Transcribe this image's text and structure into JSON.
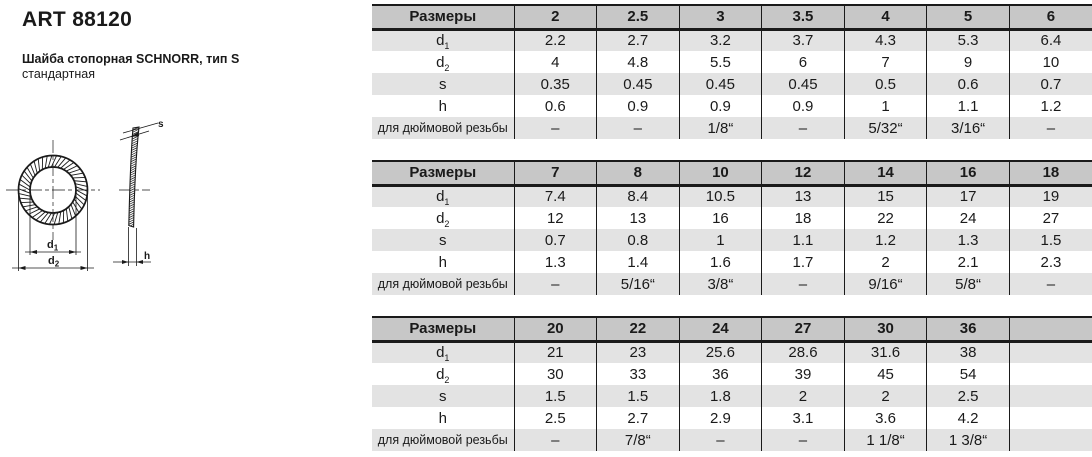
{
  "page": {
    "title": "ART 88120",
    "subtitle_line1": "Шайба стопорная SCHNORR, тип S",
    "subtitle_line2": "стандартная"
  },
  "colors": {
    "header_bg": "#c7c7c7",
    "row_alt_bg": "#e3e3e3",
    "border_color": "#1a1a1a",
    "text_color": "#1a1a1a"
  },
  "drawing": {
    "d1_main": "d",
    "d1_sub": "1",
    "d2_main": "d",
    "d2_sub": "2",
    "s_label": "s",
    "h_label": "h"
  },
  "tables": [
    {
      "header_label": "Размеры",
      "sizes": [
        "2",
        "2.5",
        "3",
        "3.5",
        "4",
        "5",
        "6"
      ],
      "rows": [
        {
          "label": "d",
          "sub": "1",
          "values": [
            "2.2",
            "2.7",
            "3.2",
            "3.7",
            "4.3",
            "5.3",
            "6.4"
          ]
        },
        {
          "label": "d",
          "sub": "2",
          "values": [
            "4",
            "4.8",
            "5.5",
            "6",
            "7",
            "9",
            "10"
          ]
        },
        {
          "label": "s",
          "sub": "",
          "values": [
            "0.35",
            "0.45",
            "0.45",
            "0.45",
            "0.5",
            "0.6",
            "0.7"
          ]
        },
        {
          "label": "h",
          "sub": "",
          "values": [
            "0.6",
            "0.9",
            "0.9",
            "0.9",
            "1",
            "1.1",
            "1.2"
          ]
        },
        {
          "label": "для дюймовой резьбы",
          "sub": "",
          "values": [
            "–",
            "–",
            "1/8“",
            "–",
            "5/32“",
            "3/16“",
            "–"
          ]
        }
      ]
    },
    {
      "header_label": "Размеры",
      "sizes": [
        "7",
        "8",
        "10",
        "12",
        "14",
        "16",
        "18"
      ],
      "rows": [
        {
          "label": "d",
          "sub": "1",
          "values": [
            "7.4",
            "8.4",
            "10.5",
            "13",
            "15",
            "17",
            "19"
          ]
        },
        {
          "label": "d",
          "sub": "2",
          "values": [
            "12",
            "13",
            "16",
            "18",
            "22",
            "24",
            "27"
          ]
        },
        {
          "label": "s",
          "sub": "",
          "values": [
            "0.7",
            "0.8",
            "1",
            "1.1",
            "1.2",
            "1.3",
            "1.5"
          ]
        },
        {
          "label": "h",
          "sub": "",
          "values": [
            "1.3",
            "1.4",
            "1.6",
            "1.7",
            "2",
            "2.1",
            "2.3"
          ]
        },
        {
          "label": "для дюймовой резьбы",
          "sub": "",
          "values": [
            "–",
            "5/16“",
            "3/8“",
            "–",
            "9/16“",
            "5/8“",
            "–"
          ]
        }
      ]
    },
    {
      "header_label": "Размеры",
      "sizes": [
        "20",
        "22",
        "24",
        "27",
        "30",
        "36",
        ""
      ],
      "rows": [
        {
          "label": "d",
          "sub": "1",
          "values": [
            "21",
            "23",
            "25.6",
            "28.6",
            "31.6",
            "38",
            ""
          ]
        },
        {
          "label": "d",
          "sub": "2",
          "values": [
            "30",
            "33",
            "36",
            "39",
            "45",
            "54",
            ""
          ]
        },
        {
          "label": "s",
          "sub": "",
          "values": [
            "1.5",
            "1.5",
            "1.8",
            "2",
            "2",
            "2.5",
            ""
          ]
        },
        {
          "label": "h",
          "sub": "",
          "values": [
            "2.5",
            "2.7",
            "2.9",
            "3.1",
            "3.6",
            "4.2",
            ""
          ]
        },
        {
          "label": "для дюймовой резьбы",
          "sub": "",
          "values": [
            "–",
            "7/8“",
            "–",
            "–",
            "1 1/8“",
            "1 3/8“",
            ""
          ]
        }
      ]
    }
  ]
}
